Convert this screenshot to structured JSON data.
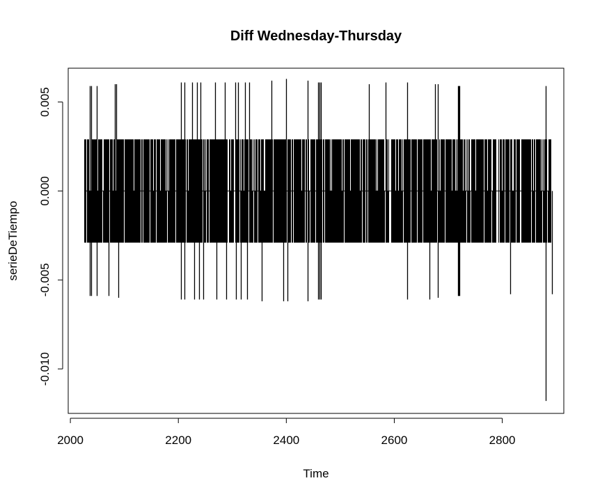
{
  "chart_data": {
    "type": "line",
    "title": "Diff Wednesday-Thursday",
    "xlabel": "Time",
    "ylabel": "serieDeTiempo",
    "xlim": [
      1996,
      2914
    ],
    "ylim": [
      -0.0125,
      0.0069
    ],
    "x_ticks": [
      2000,
      2200,
      2400,
      2600,
      2800
    ],
    "x_tick_labels": [
      "2000",
      "2200",
      "2400",
      "2600",
      "2800"
    ],
    "y_ticks": [
      -0.01,
      -0.005,
      0.0,
      0.005
    ],
    "y_tick_labels": [
      "-0.010",
      "-0.005",
      "0.000",
      "0.005"
    ],
    "series_color": "#000000",
    "series": [
      {
        "segments": [
          {
            "x_start": 2026,
            "x_end": 2890,
            "value": 0.0,
            "note": ""
          },
          {
            "x_start": 2026,
            "x_end": 2890,
            "values": [
              0.0029,
              -0.0029
            ]
          }
        ],
        "spikes": [
          {
            "x": 2036,
            "value": 0.0059
          },
          {
            "x": 2036,
            "value": -0.0059
          },
          {
            "x": 2039,
            "value": 0.0059
          },
          {
            "x": 2039,
            "value": -0.0059
          },
          {
            "x": 2049,
            "value": 0.0059
          },
          {
            "x": 2049,
            "value": -0.0059
          },
          {
            "x": 2071,
            "value": -0.0059
          },
          {
            "x": 2083,
            "value": 0.006
          },
          {
            "x": 2085,
            "value": 0.006
          },
          {
            "x": 2089,
            "value": -0.006
          },
          {
            "x": 2205,
            "value": 0.0061
          },
          {
            "x": 2205,
            "value": -0.0061
          },
          {
            "x": 2211,
            "value": 0.0061
          },
          {
            "x": 2211,
            "value": -0.0061
          },
          {
            "x": 2226,
            "value": 0.0061
          },
          {
            "x": 2229,
            "value": -0.0061
          },
          {
            "x": 2234,
            "value": 0.0061
          },
          {
            "x": 2238,
            "value": -0.0061
          },
          {
            "x": 2241,
            "value": 0.0061
          },
          {
            "x": 2246,
            "value": -0.0061
          },
          {
            "x": 2268,
            "value": 0.0061
          },
          {
            "x": 2270,
            "value": -0.0061
          },
          {
            "x": 2286,
            "value": 0.0061
          },
          {
            "x": 2289,
            "value": -0.0061
          },
          {
            "x": 2305,
            "value": 0.0061
          },
          {
            "x": 2307,
            "value": -0.0061
          },
          {
            "x": 2311,
            "value": 0.0061
          },
          {
            "x": 2316,
            "value": -0.0061
          },
          {
            "x": 2323,
            "value": 0.0061
          },
          {
            "x": 2328,
            "value": -0.0061
          },
          {
            "x": 2331,
            "value": 0.0061
          },
          {
            "x": 2355,
            "value": -0.0062
          },
          {
            "x": 2373,
            "value": 0.0062
          },
          {
            "x": 2394,
            "value": -0.0062
          },
          {
            "x": 2399,
            "value": 0.0063
          },
          {
            "x": 2402,
            "value": -0.0062
          },
          {
            "x": 2440,
            "value": 0.0062
          },
          {
            "x": 2440,
            "value": -0.0062
          },
          {
            "x": 2459,
            "value": 0.0061
          },
          {
            "x": 2459,
            "value": -0.0061
          },
          {
            "x": 2462,
            "value": 0.0061
          },
          {
            "x": 2462,
            "value": -0.0061
          },
          {
            "x": 2464,
            "value": 0.0061
          },
          {
            "x": 2464,
            "value": -0.0061
          },
          {
            "x": 2553,
            "value": 0.006
          },
          {
            "x": 2584,
            "value": 0.0061
          },
          {
            "x": 2624,
            "value": 0.0061
          },
          {
            "x": 2624,
            "value": -0.0061
          },
          {
            "x": 2665,
            "value": -0.0061
          },
          {
            "x": 2675,
            "value": 0.006
          },
          {
            "x": 2680,
            "value": 0.006
          },
          {
            "x": 2680,
            "value": -0.006
          },
          {
            "x": 2718,
            "value": 0.0059
          },
          {
            "x": 2718,
            "value": -0.0059
          },
          {
            "x": 2719,
            "value": 0.0059
          },
          {
            "x": 2719,
            "value": -0.0059
          },
          {
            "x": 2720,
            "value": 0.0059
          },
          {
            "x": 2720,
            "value": -0.0059
          },
          {
            "x": 2815,
            "value": -0.0058
          },
          {
            "x": 2880,
            "value": 0.0059
          },
          {
            "x": 2880,
            "value": -0.0118
          },
          {
            "x": 2892,
            "value": -0.0058
          }
        ]
      }
    ]
  }
}
